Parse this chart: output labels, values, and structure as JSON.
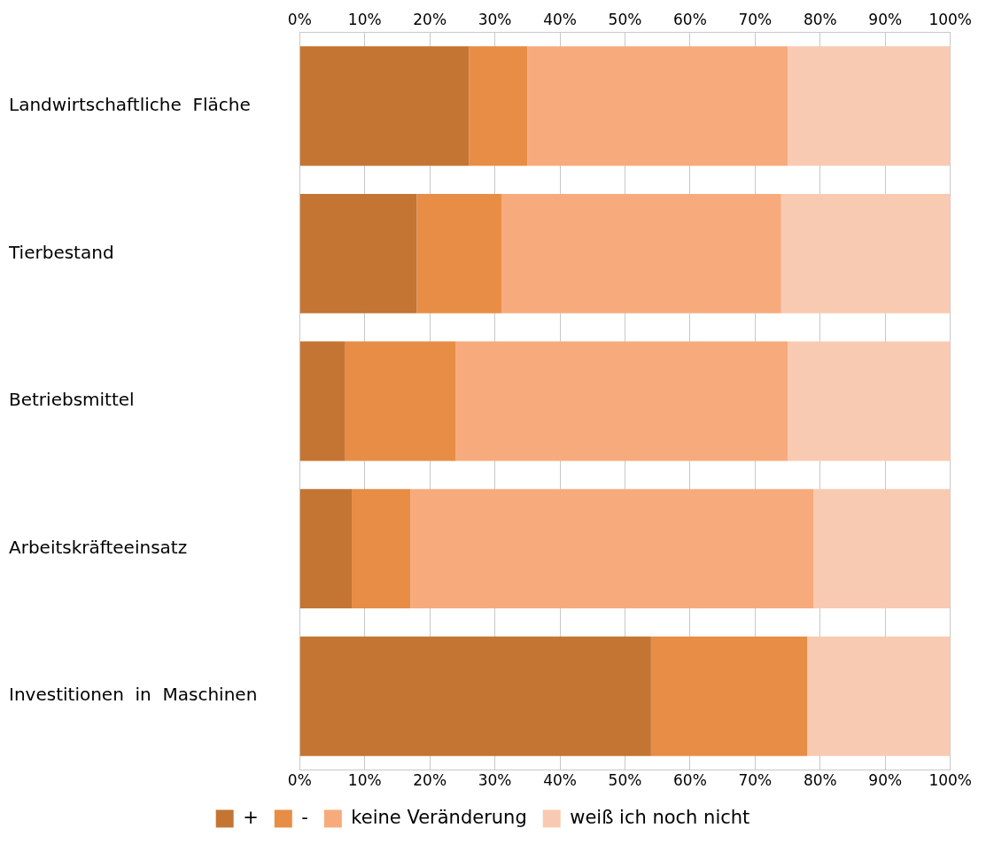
{
  "chart_data": {
    "type": "bar",
    "orientation": "horizontal",
    "stacked": true,
    "categories": [
      "Landwirtschaftliche  Fläche",
      "Tierbestand",
      "Betriebsmittel",
      "Arbeitskräfteeinsatz",
      "Investitionen  in  Maschinen"
    ],
    "series": [
      {
        "name": "+",
        "color": "#c47533",
        "values": [
          26,
          18,
          7,
          8,
          54
        ]
      },
      {
        "name": "-",
        "color": "#e88d45",
        "values": [
          9,
          13,
          17,
          9,
          24
        ]
      },
      {
        "name": "keine Veränderung",
        "color": "#f7ab7c",
        "values": [
          40,
          43,
          51,
          62,
          0
        ]
      },
      {
        "name": "weiß ich noch nicht",
        "color": "#f9cab2",
        "values": [
          25,
          26,
          25,
          21,
          22
        ]
      }
    ],
    "xlim": [
      0,
      100
    ],
    "xticks": [
      {
        "value": 0,
        "label": "0%"
      },
      {
        "value": 10,
        "label": "10%"
      },
      {
        "value": 20,
        "label": "20%"
      },
      {
        "value": 30,
        "label": "30%"
      },
      {
        "value": 40,
        "label": "40%"
      },
      {
        "value": 50,
        "label": "50%"
      },
      {
        "value": 60,
        "label": "60%"
      },
      {
        "value": 70,
        "label": "70%"
      },
      {
        "value": 80,
        "label": "80%"
      },
      {
        "value": 90,
        "label": "90%"
      },
      {
        "value": 100,
        "label": "100%"
      }
    ],
    "x2lim": [
      0,
      100
    ],
    "x2ticks": [
      {
        "value": 0,
        "label": "0%"
      },
      {
        "value": 10,
        "label": "10%"
      },
      {
        "value": 20,
        "label": "20%"
      },
      {
        "value": 30,
        "label": "30%"
      },
      {
        "value": 40,
        "label": "40%"
      },
      {
        "value": 50,
        "label": "50%"
      },
      {
        "value": 60,
        "label": "60%"
      },
      {
        "value": 70,
        "label": "70%"
      },
      {
        "value": 80,
        "label": "80%"
      },
      {
        "value": 90,
        "label": "90%"
      },
      {
        "value": 100,
        "label": "100%"
      }
    ],
    "grid": "x",
    "legend": "bottom"
  }
}
